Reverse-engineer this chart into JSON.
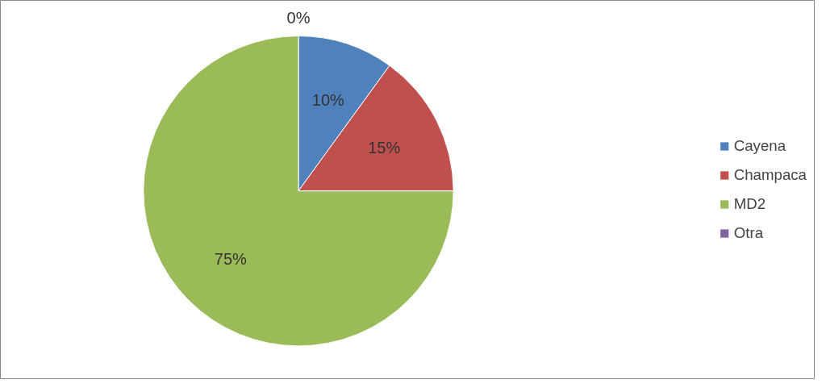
{
  "chart_data": {
    "type": "pie",
    "categories": [
      "Cayena",
      "Champaca",
      "MD2",
      "Otra"
    ],
    "values": [
      10,
      15,
      75,
      0
    ],
    "colors": [
      "#4f81bd",
      "#c0504d",
      "#9bbb59",
      "#8064a2"
    ],
    "value_labels": [
      "10%",
      "15%",
      "75%",
      "0%"
    ],
    "legend": "right"
  }
}
